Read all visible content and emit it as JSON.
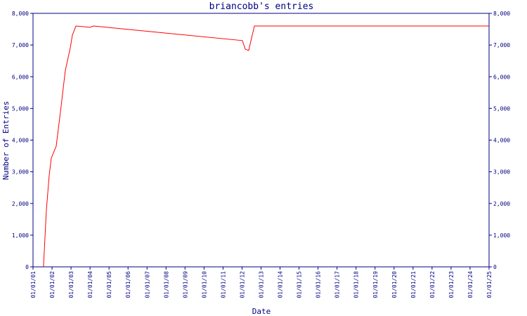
{
  "chart_data": {
    "type": "line",
    "title": "briancobb's entries",
    "xlabel": "Date",
    "ylabel": "Number of Entries",
    "series": [
      {
        "name": "entries",
        "color": "#ff0000",
        "x": [
          2001.55,
          2001.7,
          2001.85,
          2001.96,
          2002.22,
          2002.44,
          2002.7,
          2002.96,
          2003.07,
          2003.26,
          2004.0,
          2004.18,
          2012.02,
          2012.17,
          2012.35,
          2012.65,
          2025.0
        ],
        "values": [
          0,
          1770,
          2880,
          3430,
          3810,
          4875,
          6200,
          6910,
          7310,
          7600,
          7560,
          7600,
          7140,
          6870,
          6830,
          7600,
          7600
        ]
      }
    ],
    "xlim": [
      2001,
      2025
    ],
    "xticks": [
      {
        "value": 2001,
        "label": "01/01/01"
      },
      {
        "value": 2002,
        "label": "01/01/02"
      },
      {
        "value": 2003,
        "label": "01/01/03"
      },
      {
        "value": 2004,
        "label": "01/01/04"
      },
      {
        "value": 2005,
        "label": "01/01/05"
      },
      {
        "value": 2006,
        "label": "01/01/06"
      },
      {
        "value": 2007,
        "label": "01/01/07"
      },
      {
        "value": 2008,
        "label": "01/01/08"
      },
      {
        "value": 2009,
        "label": "01/01/09"
      },
      {
        "value": 2010,
        "label": "01/01/10"
      },
      {
        "value": 2011,
        "label": "01/01/11"
      },
      {
        "value": 2012,
        "label": "01/01/12"
      },
      {
        "value": 2013,
        "label": "01/01/13"
      },
      {
        "value": 2014,
        "label": "01/01/14"
      },
      {
        "value": 2015,
        "label": "01/01/15"
      },
      {
        "value": 2016,
        "label": "01/01/16"
      },
      {
        "value": 2017,
        "label": "01/01/17"
      },
      {
        "value": 2018,
        "label": "01/01/18"
      },
      {
        "value": 2019,
        "label": "01/01/19"
      },
      {
        "value": 2020,
        "label": "01/01/20"
      },
      {
        "value": 2021,
        "label": "01/01/21"
      },
      {
        "value": 2022,
        "label": "01/01/22"
      },
      {
        "value": 2023,
        "label": "01/01/23"
      },
      {
        "value": 2024,
        "label": "01/01/24"
      },
      {
        "value": 2025,
        "label": "01/01/25"
      }
    ],
    "ylim": [
      0,
      8000
    ],
    "yticks": [
      0,
      {
        "value": 1000,
        "label": "1,000"
      },
      {
        "value": 2000,
        "label": "2,000"
      },
      {
        "value": 3000,
        "label": "3,000"
      },
      {
        "value": 4000,
        "label": "4,000"
      },
      {
        "value": 5000,
        "label": "5,000"
      },
      {
        "value": 6000,
        "label": "6,000"
      },
      {
        "value": 7000,
        "label": "7,000"
      },
      {
        "value": 8000,
        "label": "8,000"
      }
    ],
    "y2lim": [
      0,
      8000
    ],
    "y2ticks": [
      0,
      {
        "value": 1000,
        "label": "1,000"
      },
      {
        "value": 2000,
        "label": "2,000"
      },
      {
        "value": 3000,
        "label": "3,000"
      },
      {
        "value": 4000,
        "label": "4,000"
      },
      {
        "value": 5000,
        "label": "5,000"
      },
      {
        "value": 6000,
        "label": "6,000"
      },
      {
        "value": 7000,
        "label": "7,000"
      },
      {
        "value": 8000,
        "label": "8,000"
      }
    ]
  }
}
